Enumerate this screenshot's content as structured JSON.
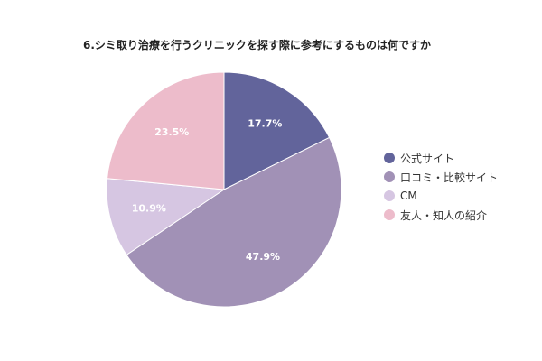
{
  "chart_data": {
    "type": "pie",
    "title": "6.シミ取り治療を行うクリニックを探す際に参考にするものは何ですか",
    "categories": [
      "公式サイト",
      "口コミ・比較サイト",
      "CM",
      "友人・知人の紹介"
    ],
    "values": [
      17.7,
      47.9,
      10.9,
      23.5
    ],
    "labels": [
      "17.7%",
      "47.9%",
      "10.9%",
      "23.5%"
    ],
    "colors": [
      "#62649b",
      "#a191b6",
      "#d6c6e2",
      "#edbccb"
    ],
    "start_angle": "12 o'clock",
    "direction": "clockwise",
    "legend_position": "right"
  }
}
